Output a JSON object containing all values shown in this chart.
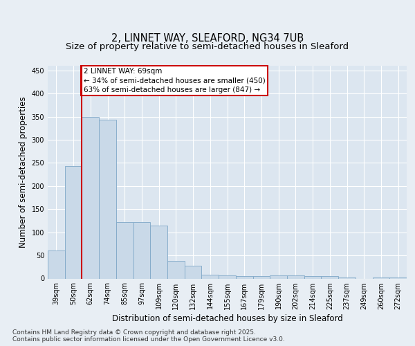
{
  "title_line1": "2, LINNET WAY, SLEAFORD, NG34 7UB",
  "title_line2": "Size of property relative to semi-detached houses in Sleaford",
  "xlabel": "Distribution of semi-detached houses by size in Sleaford",
  "ylabel": "Number of semi-detached properties",
  "categories": [
    "39sqm",
    "50sqm",
    "62sqm",
    "74sqm",
    "85sqm",
    "97sqm",
    "109sqm",
    "120sqm",
    "132sqm",
    "144sqm",
    "155sqm",
    "167sqm",
    "179sqm",
    "190sqm",
    "202sqm",
    "214sqm",
    "225sqm",
    "237sqm",
    "249sqm",
    "260sqm",
    "272sqm"
  ],
  "values": [
    60,
    243,
    350,
    343,
    122,
    122,
    115,
    38,
    28,
    8,
    7,
    5,
    5,
    7,
    7,
    5,
    5,
    2,
    0,
    2,
    2
  ],
  "bar_color": "#c9d9e8",
  "bar_edge_color": "#7fa8c8",
  "vline_x_idx": 2,
  "vline_color": "#cc0000",
  "annotation_text": "2 LINNET WAY: 69sqm\n← 34% of semi-detached houses are smaller (450)\n63% of semi-detached houses are larger (847) →",
  "annotation_box_color": "#ffffff",
  "annotation_box_edge_color": "#cc0000",
  "ylim": [
    0,
    460
  ],
  "yticks": [
    0,
    50,
    100,
    150,
    200,
    250,
    300,
    350,
    400,
    450
  ],
  "background_color": "#e8eef4",
  "plot_bg_color": "#dce6f0",
  "grid_color": "#ffffff",
  "footer_text": "Contains HM Land Registry data © Crown copyright and database right 2025.\nContains public sector information licensed under the Open Government Licence v3.0.",
  "title_fontsize": 10.5,
  "subtitle_fontsize": 9.5,
  "axis_label_fontsize": 8.5,
  "tick_fontsize": 7,
  "footer_fontsize": 6.5
}
